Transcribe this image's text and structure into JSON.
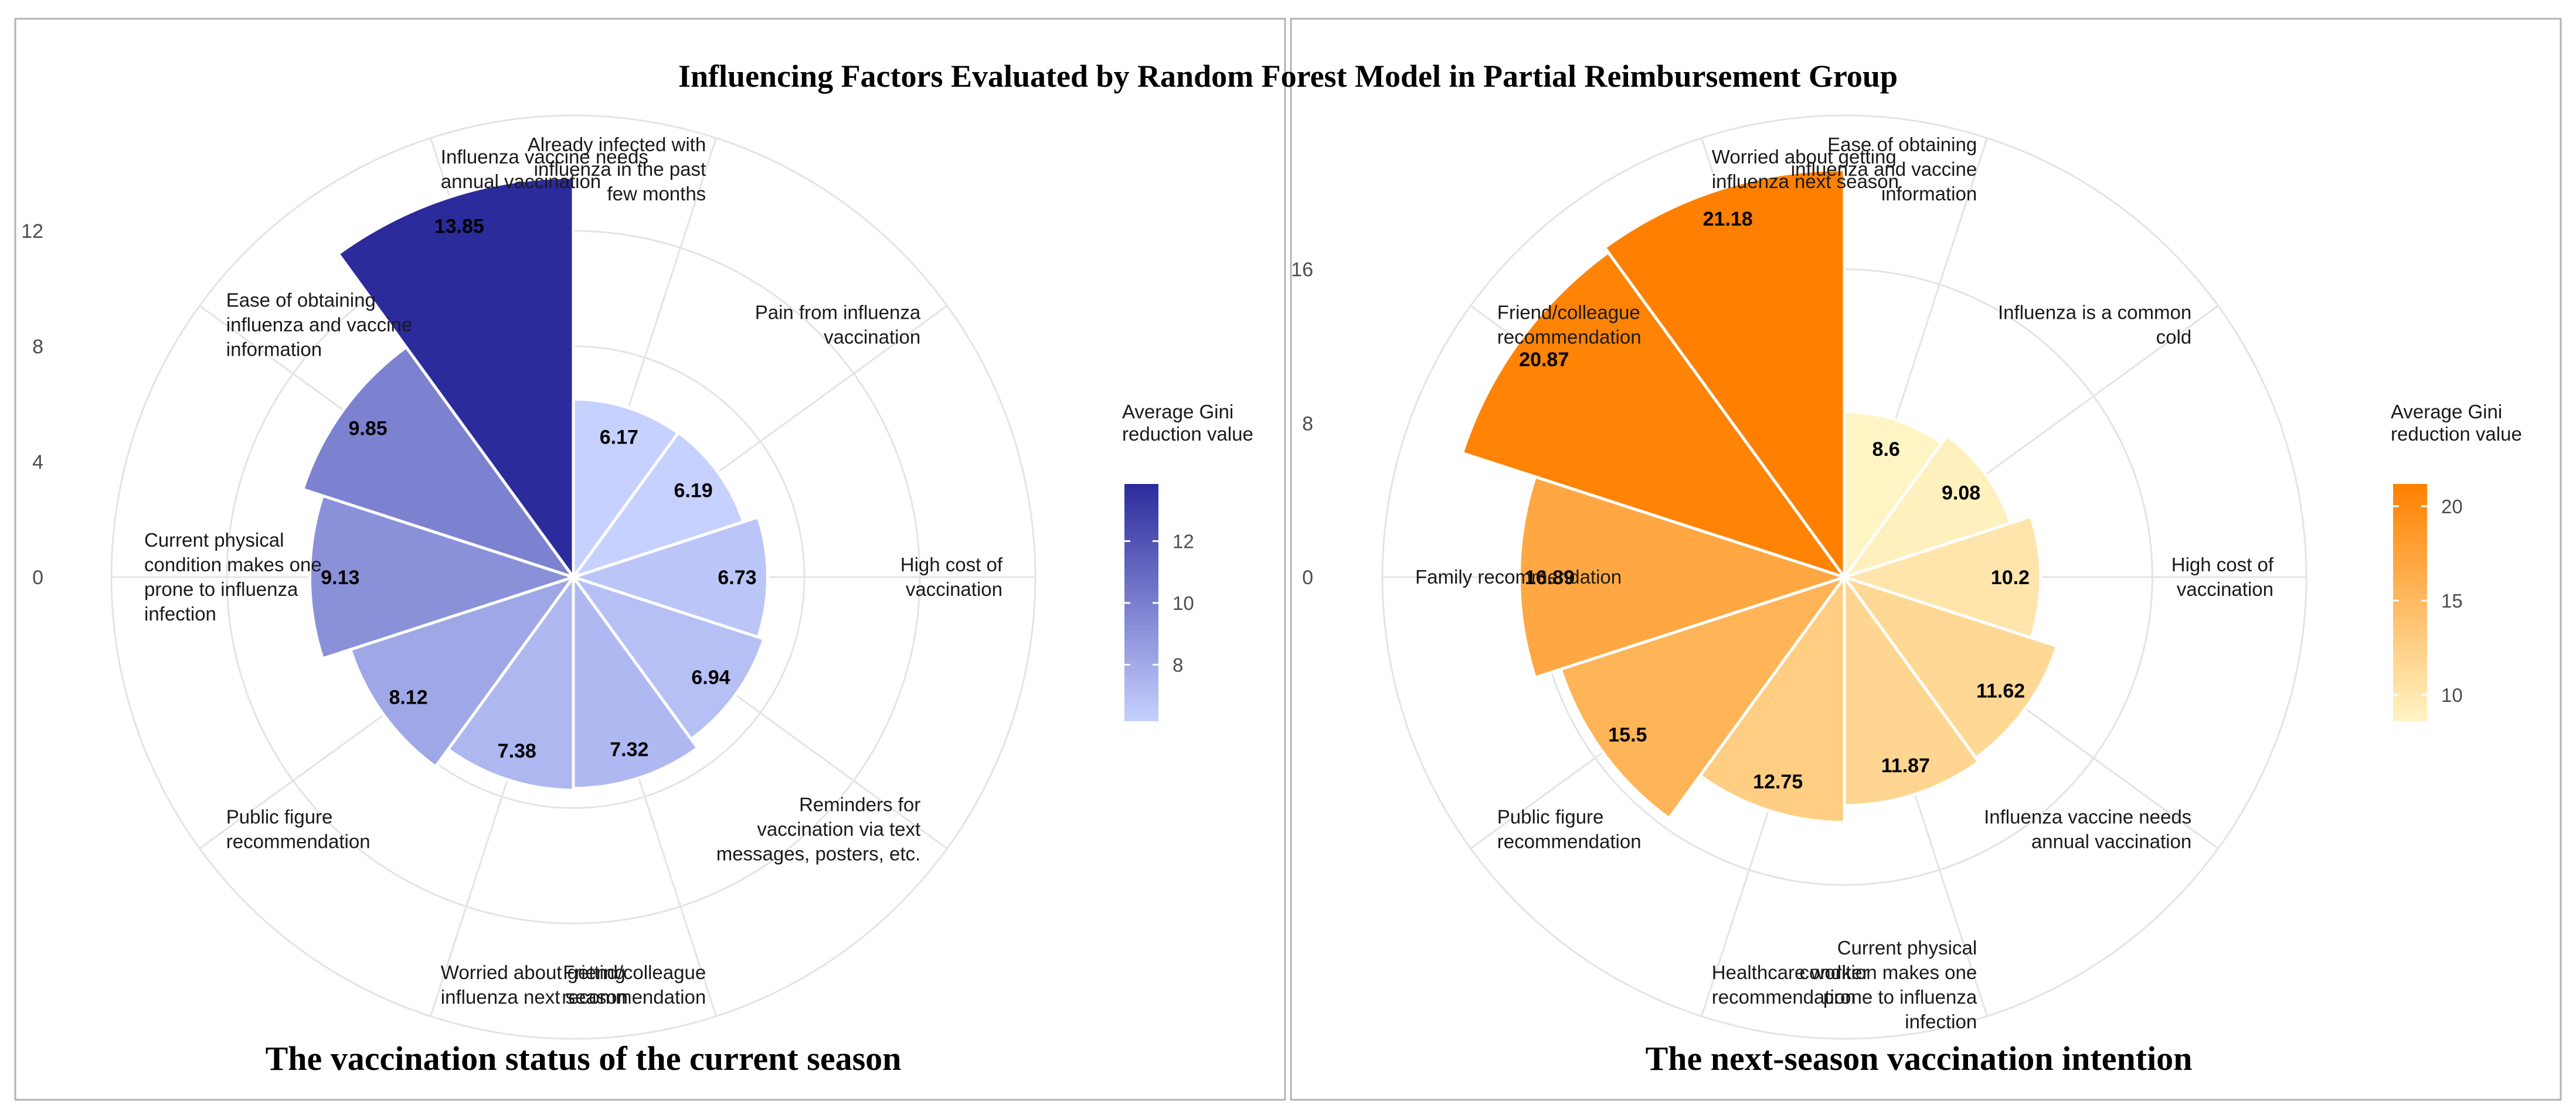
{
  "title": "Influencing Factors Evaluated by Random Forest Model in Partial Reimbursement Group",
  "chart_data": [
    {
      "type": "polar-bar",
      "subtitle": "The vaccination status of the current season",
      "radial_ticks": [
        0,
        4,
        8,
        12
      ],
      "rmax": 16,
      "legend": {
        "title": [
          "Average Gini",
          "reduction value"
        ],
        "ticks": [
          8,
          10,
          12
        ],
        "range": [
          6.17,
          13.85
        ],
        "colors": [
          "#c6d1ff",
          "#2c2b9c"
        ],
        "placement": "right"
      },
      "categories": [
        [
          "Already infected with",
          "influenza in the past",
          "few months"
        ],
        [
          "Pain from influenza",
          "vaccination"
        ],
        [
          "High cost of",
          "vaccination"
        ],
        [
          "Reminders for",
          "vaccination via text",
          "messages, posters, etc."
        ],
        [
          "Friend/colleague",
          "recommendation"
        ],
        [
          "Worried about getting",
          "influenza next season"
        ],
        [
          "Public figure",
          "recommendation"
        ],
        [
          "Current physical",
          "condition makes one",
          "prone to influenza",
          "infection"
        ],
        [
          "Ease of obtaining",
          "influenza and vaccine",
          "information"
        ],
        [
          "Influenza vaccine needs",
          "annual vaccination"
        ]
      ],
      "values": [
        6.17,
        6.19,
        6.73,
        6.94,
        7.32,
        7.38,
        8.12,
        9.13,
        9.85,
        13.85
      ],
      "value_labels": [
        "6.17",
        "6.19",
        "6.73",
        "6.94",
        "7.32",
        "7.38",
        "8.12",
        "9.13",
        "9.85",
        "13.85"
      ]
    },
    {
      "type": "polar-bar",
      "subtitle": "The next-season vaccination intention",
      "radial_ticks": [
        0,
        8,
        16
      ],
      "rmax": 24,
      "legend": {
        "title": [
          "Average Gini",
          "reduction value"
        ],
        "ticks": [
          10,
          15,
          20
        ],
        "range": [
          8.6,
          21.18
        ],
        "colors": [
          "#fff4c4",
          "#ff8000"
        ],
        "placement": "right"
      },
      "categories": [
        [
          "Ease of obtaining",
          "influenza and vaccine",
          "information"
        ],
        [
          "Influenza is a common",
          "cold"
        ],
        [
          "High cost of",
          "vaccination"
        ],
        [
          "Influenza vaccine needs",
          "annual vaccination"
        ],
        [
          "Current physical",
          "condition makes one",
          "prone to influenza",
          "infection"
        ],
        [
          "Healthcare worker",
          "recommendation"
        ],
        [
          "Public figure",
          "recommendation"
        ],
        [
          "Family recommendation"
        ],
        [
          "Friend/colleague",
          "recommendation"
        ],
        [
          "Worried about getting",
          "influenza next season"
        ]
      ],
      "values": [
        8.6,
        9.08,
        10.2,
        11.62,
        11.87,
        12.75,
        15.5,
        16.89,
        20.87,
        21.18
      ],
      "value_labels": [
        "8.6",
        "9.08",
        "10.2",
        "11.62",
        "11.87",
        "12.75",
        "15.5",
        "16.89",
        "20.87",
        "21.18"
      ]
    }
  ]
}
